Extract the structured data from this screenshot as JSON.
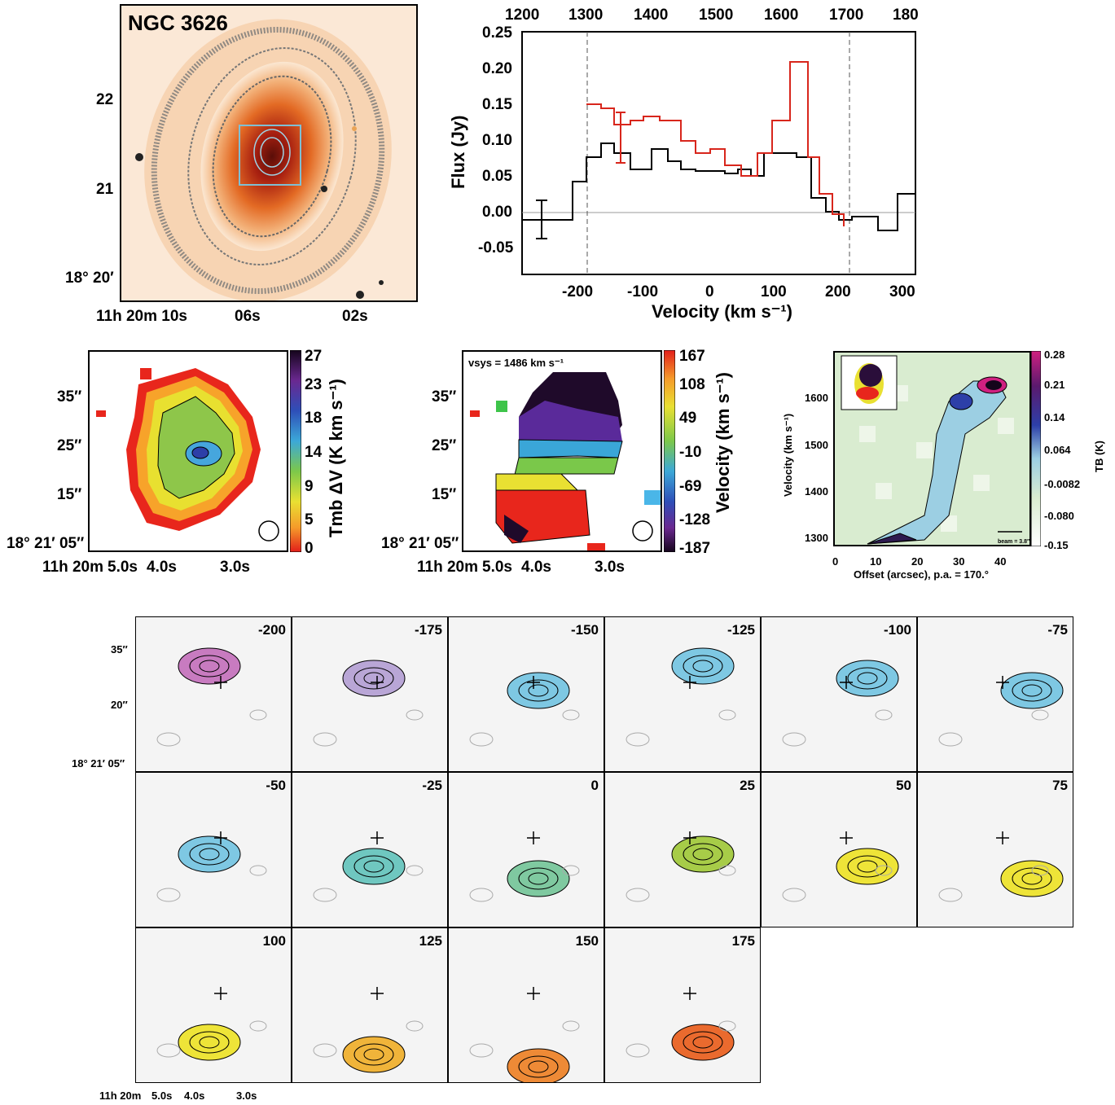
{
  "optical": {
    "title": "NGC 3626",
    "dec_ticks": [
      "22",
      "21",
      "18° 20′"
    ],
    "ra_ticks": [
      "11h 20m 10s",
      "06s",
      "02s"
    ]
  },
  "spectrum": {
    "ylabel": "Flux (Jy)",
    "xlabel": "Velocity (km s⁻¹)",
    "y_ticks": [
      "0.25",
      "0.20",
      "0.15",
      "0.10",
      "0.05",
      "0.00",
      "-0.05"
    ],
    "x_ticks_bottom": [
      "-200",
      "-100",
      "0",
      "100",
      "200",
      "300"
    ],
    "x_ticks_top": [
      "1200",
      "1300",
      "1400",
      "1500",
      "1600",
      "1700",
      "180"
    ]
  },
  "mom0": {
    "cbar_label": "Tmb ΔV (K km s⁻¹)",
    "cbar_ticks": [
      "27",
      "23",
      "18",
      "14",
      "9",
      "5",
      "0"
    ],
    "dec_ticks": [
      "35″",
      "25″",
      "15″",
      "18° 21′ 05″"
    ],
    "ra_ticks": [
      "11h 20m",
      "5.0s",
      "4.0s",
      "3.0s"
    ]
  },
  "mom1": {
    "annotation": "vsys = 1486 km s⁻¹",
    "cbar_label": "Velocity (km s⁻¹)",
    "cbar_ticks": [
      "167",
      "108",
      "49",
      "-10",
      "-69",
      "-128",
      "-187"
    ],
    "dec_ticks": [
      "35″",
      "25″",
      "15″",
      "18° 21′ 05″"
    ],
    "ra_ticks": [
      "11h 20m",
      "5.0s",
      "4.0s",
      "3.0s"
    ]
  },
  "pv": {
    "ylabel": "Velocity (km s⁻¹)",
    "xlabel": "Offset (arcsec), p.a. = 170.°",
    "cbar_label": "TB (K)",
    "cbar_ticks": [
      "0.28",
      "0.21",
      "0.14",
      "0.064",
      "-0.0082",
      "-0.080",
      "-0.15"
    ],
    "y_ticks": [
      "1600",
      "1500",
      "1400",
      "1300"
    ],
    "x_ticks": [
      "0",
      "10",
      "20",
      "30",
      "40"
    ],
    "beam_label": "beam = 3.8″"
  },
  "channels": {
    "labels": [
      "-200",
      "-175",
      "-150",
      "-125",
      "-100",
      "-75",
      "-50",
      "-25",
      "0",
      "25",
      "50",
      "75",
      "100",
      "125",
      "150",
      "175"
    ],
    "colors": [
      "#c87bc0",
      "#b9a6d6",
      "#7ec8e3",
      "#7ec8e3",
      "#7ec8e3",
      "#7ec8e3",
      "#7ec8e3",
      "#6fc7c0",
      "#7fc9a0",
      "#a7cc48",
      "#eee438",
      "#eee438",
      "#eee438",
      "#f0b43a",
      "#ee8a36",
      "#ea6a2e"
    ],
    "dec_ticks": [
      "35″",
      "20″",
      "18° 21′ 05″"
    ],
    "ra_ticks": [
      "11h 20m",
      "5.0s",
      "4.0s",
      "3.0s"
    ]
  }
}
